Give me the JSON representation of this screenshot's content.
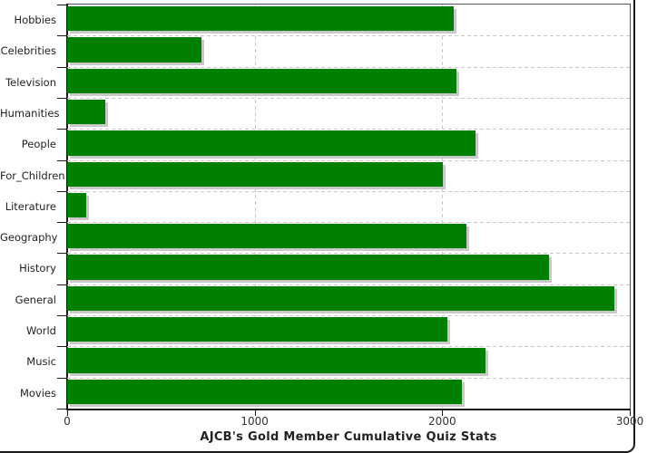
{
  "chart_data": {
    "type": "bar",
    "orientation": "horizontal",
    "title": "AJCB's Gold Member Cumulative Quiz Stats",
    "categories": [
      "Hobbies",
      "Celebrities",
      "Television",
      "Humanities",
      "People",
      "For_Children",
      "Literature",
      "Geography",
      "History",
      "General",
      "World",
      "Music",
      "Movies"
    ],
    "values": [
      2060,
      715,
      2075,
      205,
      2175,
      2005,
      100,
      2130,
      2570,
      2920,
      2025,
      2230,
      2105
    ],
    "xlabel": "",
    "ylabel": "",
    "xlim": [
      0,
      3000
    ],
    "x_ticks": [
      0,
      1000,
      2000,
      3000
    ],
    "grid": {
      "vertical_dashed_at": [
        1000,
        2000
      ],
      "horizontal_dashed": "row boundaries"
    },
    "legend": null,
    "colors": {
      "bar_fill": "#008000",
      "bar_shadow": "#c9c9c9",
      "gridline": "#c9c9c9",
      "axis": "#1a1a1a",
      "text": "#222222"
    }
  }
}
